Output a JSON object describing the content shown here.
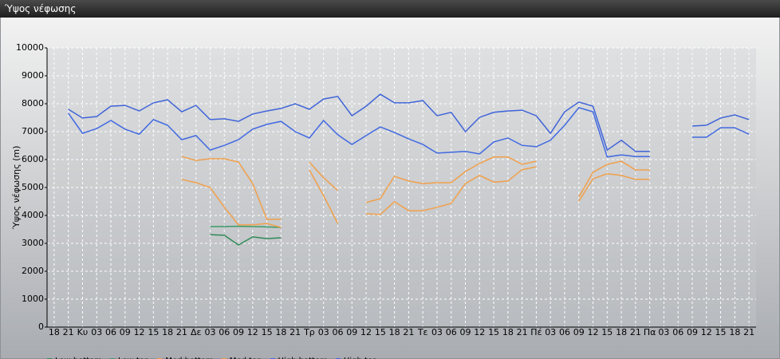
{
  "window_title": "Ύψος νέφωσης",
  "chart_data": {
    "type": "line",
    "y_label": "Ύψος νέφωσης (m)",
    "categories": [
      "18",
      "21",
      "Κυ",
      "03",
      "06",
      "09",
      "12",
      "15",
      "18",
      "21",
      "Δε",
      "03",
      "06",
      "09",
      "12",
      "15",
      "18",
      "21",
      "Τρ",
      "03",
      "06",
      "09",
      "12",
      "15",
      "18",
      "21",
      "Τε",
      "03",
      "06",
      "09",
      "12",
      "15",
      "18",
      "21",
      "Πέ",
      "03",
      "06",
      "09",
      "12",
      "15",
      "18",
      "21",
      "Πα",
      "03",
      "06",
      "09",
      "12",
      "15",
      "18",
      "21"
    ],
    "ylim": [
      0,
      10000
    ],
    "yticks": [
      0,
      1000,
      2000,
      3000,
      4000,
      5000,
      6000,
      7000,
      8000,
      9000,
      10000
    ],
    "grid": true,
    "series": [
      {
        "name": "Low bottom",
        "color": "#2e8b57",
        "values": [
          null,
          null,
          null,
          null,
          null,
          null,
          null,
          null,
          null,
          null,
          null,
          3310,
          3290,
          2940,
          3230,
          3170,
          3200,
          null,
          null,
          null,
          null,
          null,
          null,
          null,
          null,
          null,
          null,
          null,
          null,
          null,
          null,
          null,
          null,
          null,
          null,
          null,
          null,
          null,
          null,
          null,
          null,
          null,
          null,
          null,
          null,
          null,
          null,
          null,
          null,
          null
        ]
      },
      {
        "name": "Low top",
        "color": "#3a9a6a",
        "values": [
          null,
          null,
          null,
          null,
          null,
          null,
          null,
          null,
          null,
          null,
          null,
          3600,
          3600,
          3610,
          3600,
          3590,
          3570,
          null,
          null,
          null,
          null,
          null,
          null,
          null,
          null,
          null,
          null,
          null,
          null,
          null,
          null,
          null,
          null,
          null,
          null,
          null,
          null,
          null,
          null,
          null,
          null,
          null,
          null,
          null,
          null,
          null,
          null,
          null,
          null,
          null
        ]
      },
      {
        "name": "Med bottom",
        "color": "#f0a04b",
        "values": [
          null,
          null,
          null,
          null,
          null,
          null,
          null,
          null,
          null,
          5290,
          5170,
          5000,
          4290,
          3660,
          3660,
          3710,
          3570,
          null,
          5630,
          4710,
          3710,
          null,
          4060,
          4030,
          4490,
          4170,
          4170,
          4290,
          4430,
          5140,
          5430,
          5190,
          5230,
          5640,
          5740,
          null,
          null,
          4510,
          5310,
          5490,
          5430,
          5290,
          5290,
          null,
          null,
          null,
          null,
          null,
          null,
          null
        ]
      },
      {
        "name": "Med top",
        "color": "#f0a04b",
        "values": [
          null,
          null,
          null,
          null,
          null,
          null,
          null,
          null,
          null,
          6110,
          5970,
          6030,
          6030,
          5910,
          5140,
          3860,
          3860,
          null,
          5910,
          5350,
          4890,
          null,
          4460,
          4600,
          5400,
          5230,
          5140,
          5170,
          5170,
          5570,
          5860,
          6090,
          6090,
          5830,
          5940,
          null,
          null,
          4660,
          5540,
          5830,
          5940,
          5630,
          5630,
          null,
          null,
          null,
          null,
          null,
          null,
          null
        ]
      },
      {
        "name": "High bottom",
        "color": "#4169e1",
        "values": [
          null,
          7660,
          6940,
          7110,
          7400,
          7090,
          6910,
          7430,
          7230,
          6710,
          6860,
          6340,
          6510,
          6710,
          7090,
          7260,
          7370,
          7000,
          6770,
          7400,
          6890,
          6540,
          6860,
          7170,
          6970,
          6740,
          6540,
          6230,
          6260,
          6290,
          6200,
          6630,
          6770,
          6510,
          6460,
          6690,
          7230,
          7860,
          7710,
          6090,
          6170,
          6110,
          6110,
          null,
          null,
          6800,
          6800,
          7140,
          7140,
          6910
        ]
      },
      {
        "name": "High top",
        "color": "#3f64d8",
        "values": [
          null,
          7800,
          7490,
          7540,
          7910,
          7940,
          7740,
          8030,
          8140,
          7710,
          7940,
          7430,
          7460,
          7370,
          7630,
          7740,
          7830,
          8000,
          7800,
          8170,
          8260,
          7570,
          7910,
          8340,
          8030,
          8030,
          8110,
          7570,
          7690,
          7000,
          7510,
          7690,
          7740,
          7770,
          7570,
          6940,
          7710,
          8060,
          7910,
          6340,
          6690,
          6290,
          6290,
          null,
          null,
          7200,
          7230,
          7490,
          7600,
          7430
        ]
      }
    ]
  }
}
